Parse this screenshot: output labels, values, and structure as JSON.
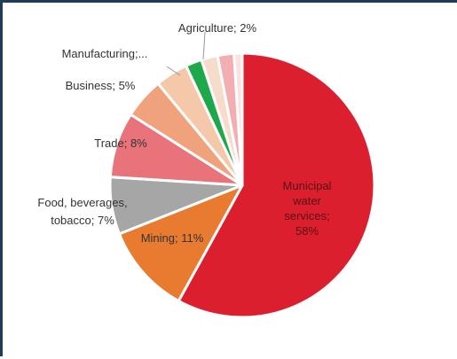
{
  "chart_data": {
    "type": "pie",
    "title": "",
    "slices": [
      {
        "label": "Municipal water services; 58%",
        "value": 58,
        "color": "#db1f2e"
      },
      {
        "label": "Mining; 11%",
        "value": 11,
        "color": "#e87b2f"
      },
      {
        "label": "Food, beverages, tobacco; 7%",
        "value": 7,
        "color": "#a6a6a6"
      },
      {
        "label": "Trade; 8%",
        "value": 8,
        "color": "#e9737b"
      },
      {
        "label": "Business; 5%",
        "value": 5,
        "color": "#f0a27d"
      },
      {
        "label": "Manufacturing;...",
        "value": 4,
        "color": "#f4c8a9"
      },
      {
        "label": "Agriculture; 2%",
        "value": 2,
        "color": "#1fa84a"
      },
      {
        "label": "",
        "value": 2,
        "color": "#f6dccb"
      },
      {
        "label": "",
        "value": 2,
        "color": "#f2aeb1"
      },
      {
        "label": "",
        "value": 1,
        "color": "#fbe1e2"
      }
    ],
    "legend": "none"
  },
  "labels": {
    "municipal_line1": "Municipal",
    "municipal_line2": "water",
    "municipal_line3": "services;",
    "municipal_line4": "58%",
    "mining": "Mining; 11%",
    "food_line1": "Food, beverages,",
    "food_line2": "tobacco; 7%",
    "trade": "Trade; 8%",
    "business": "Business; 5%",
    "manufacturing": "Manufacturing;...",
    "agriculture": "Agriculture; 2%"
  }
}
